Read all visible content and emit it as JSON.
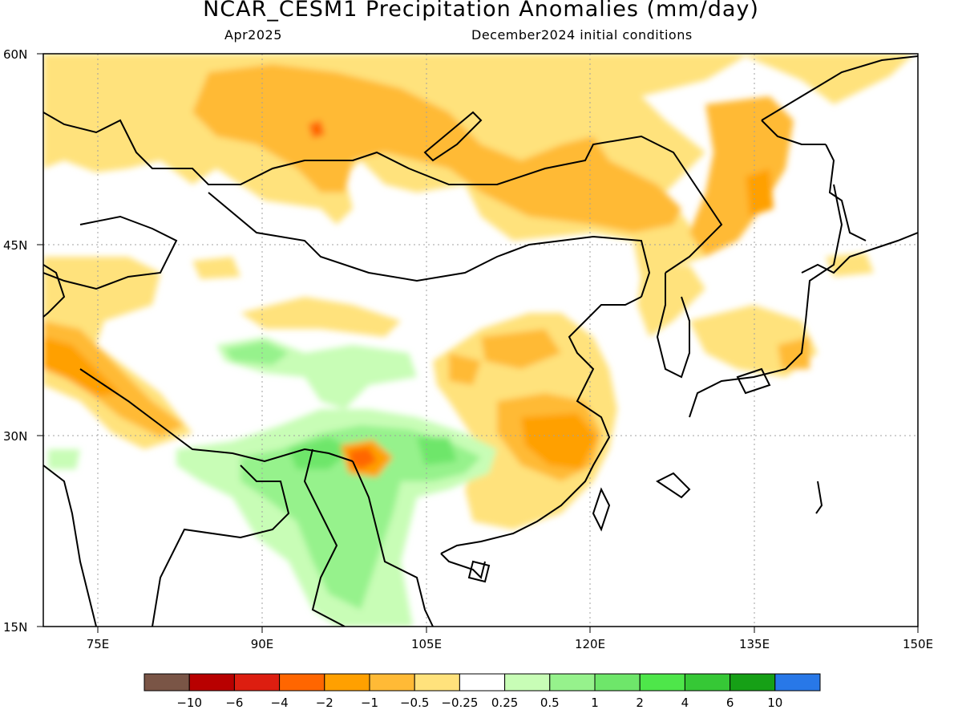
{
  "title": "NCAR_CESM1 Precipitation Anomalies (mm/day)",
  "subtitle_left": "Apr2025",
  "subtitle_right": "December2024 initial conditions",
  "lat_ticks": [
    {
      "value": 60,
      "label": "60N"
    },
    {
      "value": 45,
      "label": "45N"
    },
    {
      "value": 30,
      "label": "30N"
    },
    {
      "value": 15,
      "label": "15N"
    }
  ],
  "lon_ticks": [
    {
      "value": 75,
      "label": "75E"
    },
    {
      "value": 90,
      "label": "90E"
    },
    {
      "value": 105,
      "label": "105E"
    },
    {
      "value": 120,
      "label": "120E"
    },
    {
      "value": 135,
      "label": "135E"
    },
    {
      "value": 150,
      "label": "150E"
    }
  ],
  "colors": {
    "frame": "#000000",
    "coast": "#000000",
    "grid": "#a0a0a0"
  },
  "colorbar": {
    "colors": [
      "#7a5546",
      "#b80000",
      "#dd1e10",
      "#ff6600",
      "#ffa000",
      "#ffba36",
      "#ffe27c",
      "#ffffff",
      "#c8fdb6",
      "#96f28c",
      "#6ee66a",
      "#4ee64a",
      "#36c836",
      "#16a016",
      "#2878e8"
    ],
    "labels": [
      "-10",
      "-6",
      "-4",
      "-2",
      "-1",
      "-0.5",
      "-0.25",
      "0.25",
      "0.5",
      "1",
      "2",
      "4",
      "6",
      "10"
    ]
  }
}
